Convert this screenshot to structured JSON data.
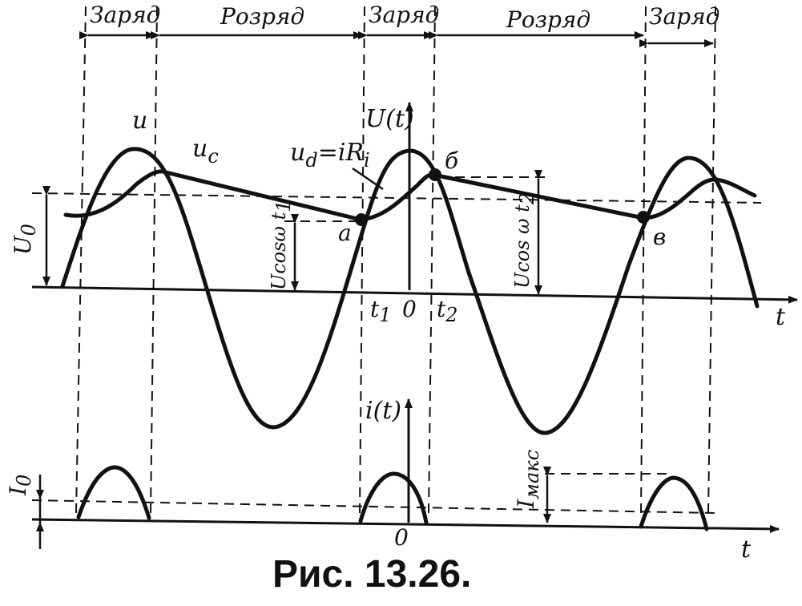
{
  "phases": [
    "Заряд",
    "Розряд",
    "Заряд",
    "Розряд",
    "Заряд"
  ],
  "labels": {
    "u": "u",
    "uc_main": "u",
    "uc_sub": "c",
    "ud_main": "u",
    "ud_sub": "d",
    "ud_rest": "=iR",
    "ud_sub2": "i",
    "U_t": "U(t)",
    "i_t": "i(t)",
    "U0_main": "U",
    "U0_sub": "0",
    "I0_main": "I",
    "I0_sub": "0",
    "Imax_main": "I",
    "Imax_sub": "макс",
    "ucos1_main": "Ucosω t",
    "ucos1_sub": "1",
    "ucos2_main": "Ucos ω t",
    "ucos2_sub": "2",
    "point_a": "a",
    "point_b": "б",
    "point_v": "в",
    "t1_main": "t",
    "t1_sub": "1",
    "t2_main": "t",
    "t2_sub": "2",
    "zero_top": "0",
    "zero_bottom": "0",
    "t_top": "t",
    "t_bottom": "t"
  },
  "caption": "Рис. 13.26."
}
